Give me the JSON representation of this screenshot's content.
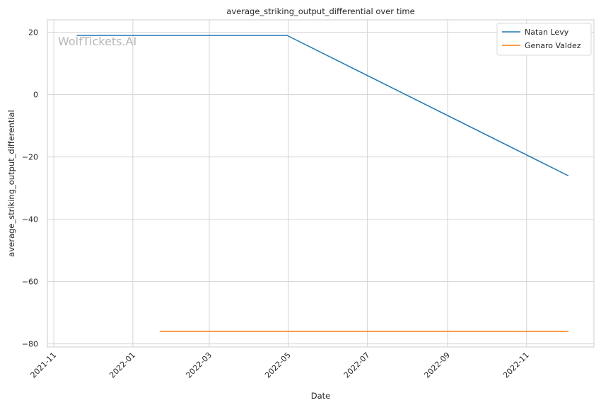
{
  "chart_data": {
    "type": "line",
    "title": "average_striking_output_differential over time",
    "xlabel": "Date",
    "ylabel": "average_striking_output_differential",
    "watermark": "WolfTickets.AI",
    "x_ticks": [
      "2021-11",
      "2022-01",
      "2022-03",
      "2022-05",
      "2022-07",
      "2022-09",
      "2022-11"
    ],
    "y_ticks": [
      20,
      0,
      -20,
      -40,
      -60,
      -80
    ],
    "y_tick_labels": [
      "20",
      "0",
      "−20",
      "−40",
      "−60",
      "−80"
    ],
    "xlim": [
      "2021-10-27",
      "2022-12-23"
    ],
    "ylim": [
      -81,
      24
    ],
    "grid": true,
    "legend_position": "top-right",
    "series": [
      {
        "name": "Natan Levy",
        "color": "#1f77b4",
        "points": [
          {
            "x": "2021-11-19",
            "y": 19
          },
          {
            "x": "2022-04-30",
            "y": 19
          },
          {
            "x": "2022-12-03",
            "y": -26
          }
        ]
      },
      {
        "name": "Genaro Valdez",
        "color": "#ff7f0e",
        "points": [
          {
            "x": "2022-01-22",
            "y": -76
          },
          {
            "x": "2022-12-03",
            "y": -76
          }
        ]
      }
    ]
  }
}
